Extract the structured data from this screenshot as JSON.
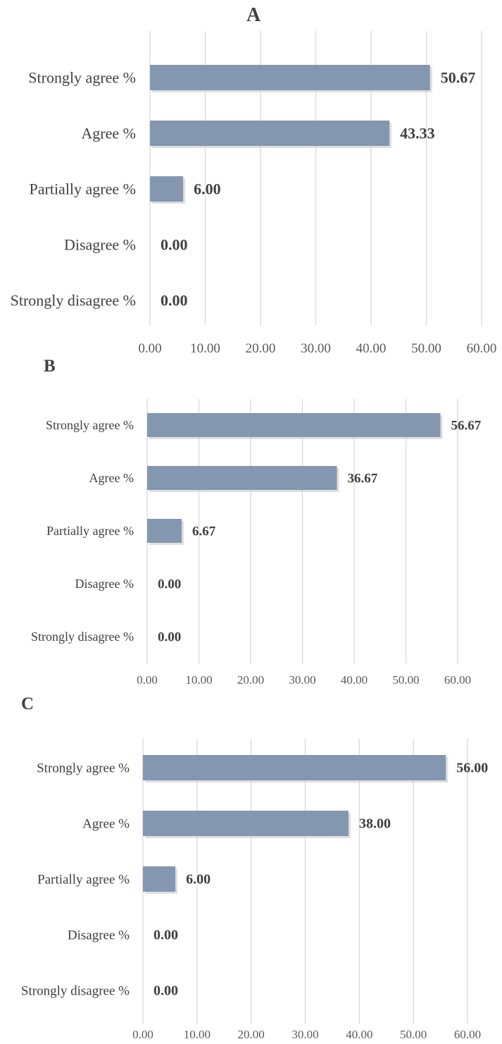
{
  "chart_data": [
    {
      "type": "bar",
      "orientation": "horizontal",
      "panel_label": "A",
      "categories": [
        "Strongly agree %",
        "Agree %",
        "Partially agree %",
        "Disagree %",
        "Strongly disagree %"
      ],
      "values": [
        50.67,
        43.33,
        6.0,
        0.0,
        0.0
      ],
      "value_labels": [
        "50.67",
        "43.33",
        "6.00",
        "0.00",
        "0.00"
      ],
      "xlim": [
        0,
        60
      ],
      "xticks": [
        "0.00",
        "10.00",
        "20.00",
        "30.00",
        "40.00",
        "50.00",
        "60.00"
      ],
      "grid": "vertical",
      "bar_color": "#8497b0"
    },
    {
      "type": "bar",
      "orientation": "horizontal",
      "panel_label": "B",
      "categories": [
        "Strongly agree %",
        "Agree %",
        "Partially agree %",
        "Disagree %",
        "Strongly disagree %"
      ],
      "values": [
        56.67,
        36.67,
        6.67,
        0.0,
        0.0
      ],
      "value_labels": [
        "56.67",
        "36.67",
        "6.67",
        "0.00",
        "0.00"
      ],
      "xlim": [
        0,
        60
      ],
      "xticks": [
        "0.00",
        "10.00",
        "20.00",
        "30.00",
        "40.00",
        "50.00",
        "60.00"
      ],
      "grid": "vertical",
      "bar_color": "#8497b0"
    },
    {
      "type": "bar",
      "orientation": "horizontal",
      "panel_label": "C",
      "categories": [
        "Strongly agree %",
        "Agree %",
        "Partially agree %",
        "Disagree %",
        "Strongly disagree %"
      ],
      "values": [
        56.0,
        38.0,
        6.0,
        0.0,
        0.0
      ],
      "value_labels": [
        "56.00",
        "38.00",
        "6.00",
        "0.00",
        "0.00"
      ],
      "xlim": [
        0,
        60
      ],
      "xticks": [
        "0.00",
        "10.00",
        "20.00",
        "30.00",
        "40.00",
        "50.00",
        "60.00"
      ],
      "grid": "vertical",
      "bar_color": "#8497b0"
    }
  ]
}
